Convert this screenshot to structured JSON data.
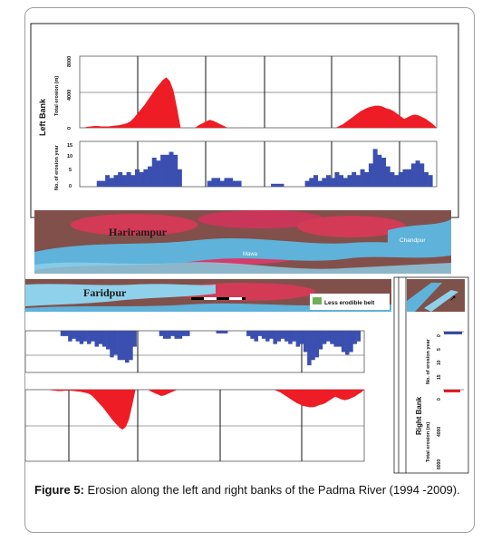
{
  "caption": {
    "label": "Figure 5:",
    "text": "Erosion along the left and right banks of the Padma River (1994 -2009)."
  },
  "panels": {
    "left_bank": "Left Bank",
    "right_bank": "Right Bank",
    "total_erosion_axis": "Total erosion (m)",
    "erosion_year_axis": "No. of erosion year",
    "total_erosion_ticks": [
      "8000",
      "4000",
      "0"
    ],
    "erosion_year_ticks": [
      "15",
      "10",
      "5",
      "0"
    ],
    "rb_erosion_year_ticks": [
      "0",
      "5",
      "10",
      "15"
    ],
    "rb_total_ticks": [
      "0",
      "4000",
      "8000"
    ]
  },
  "map": {
    "harirampur": "Harirampur",
    "mawa": "Mawa",
    "chandpur": "Chandpur",
    "faridpur": "Faridpur",
    "legend": "Less erodible belt"
  },
  "colors": {
    "erosion_red": "#ee1c24",
    "year_blue": "#3a4fb0",
    "river": "#5fb2d9",
    "land_red": "#d23a55",
    "land_green": "#4a6a3e"
  },
  "chart_data": [
    {
      "type": "area",
      "title": "",
      "xlabel": "",
      "ylabel": "Total erosion (m)",
      "ylim": [
        0,
        8000
      ],
      "series": [
        {
          "name": "",
          "values": [
            0,
            0,
            100,
            150,
            200,
            200,
            150,
            150,
            150,
            200,
            250,
            300,
            400,
            500,
            700,
            1100,
            1600,
            2100,
            2600,
            3200,
            3800,
            4400,
            4900,
            5400,
            5700,
            5300,
            4200,
            2200,
            0,
            0,
            0,
            0,
            0,
            300,
            500,
            700,
            900,
            800,
            600,
            400,
            200,
            0,
            0,
            0,
            0,
            0,
            0,
            0,
            0,
            0,
            0,
            0,
            0,
            0,
            0,
            0,
            0,
            0,
            0,
            0,
            0,
            0,
            0,
            0,
            0,
            0,
            0,
            0,
            0,
            0,
            0,
            0,
            200,
            400,
            700,
            1000,
            1300,
            1600,
            1900,
            2100,
            2300,
            2400,
            2500,
            2500,
            2400,
            2200,
            2100,
            1900,
            1600,
            1300,
            1000,
            1200,
            1400,
            1500,
            1400,
            1200,
            1000,
            700,
            400,
            0
          ]
        }
      ]
    },
    {
      "type": "bar",
      "title": "",
      "xlabel": "",
      "ylabel": "No. of erosion year",
      "ylim": [
        0,
        15
      ],
      "series": [
        {
          "name": "",
          "values": [
            0,
            0,
            0,
            0,
            2,
            2,
            4,
            3,
            4,
            5,
            4,
            5,
            4,
            6,
            5,
            6,
            7,
            10,
            9,
            11,
            11,
            12,
            11,
            6,
            0,
            0,
            0,
            0,
            0,
            0,
            2,
            3,
            3,
            2,
            3,
            3,
            2,
            2,
            0,
            0,
            0,
            0,
            0,
            0,
            0,
            1,
            1,
            1,
            0,
            0,
            0,
            0,
            0,
            2,
            3,
            4,
            2,
            3,
            4,
            3,
            5,
            4,
            3,
            4,
            5,
            4,
            6,
            5,
            8,
            13,
            11,
            10,
            7,
            5,
            4,
            5,
            6,
            6,
            8,
            9,
            8,
            5,
            4,
            0
          ]
        }
      ]
    }
  ]
}
